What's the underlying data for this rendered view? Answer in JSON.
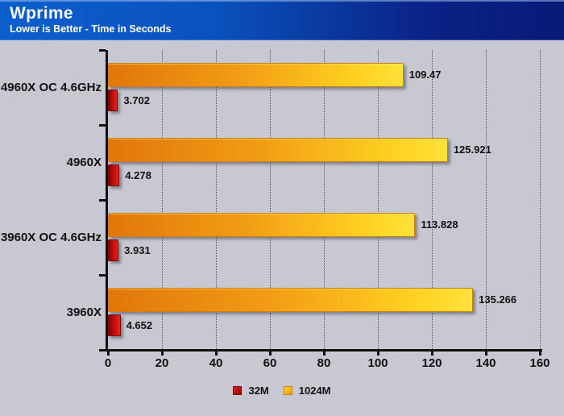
{
  "header": {
    "title": "Wprime",
    "subtitle": "Lower is Better - Time in Seconds"
  },
  "chart_data": {
    "type": "bar",
    "orientation": "horizontal",
    "title": "Wprime",
    "subtitle": "Lower is Better - Time in Seconds",
    "categories": [
      "4960X OC 4.6GHz",
      "4960X",
      "3960X OC 4.6GHz",
      "3960X"
    ],
    "series": [
      {
        "name": "32M",
        "color": "#c41010",
        "values": [
          3.702,
          4.278,
          3.931,
          4.652
        ]
      },
      {
        "name": "1024M",
        "color": "#f7a313",
        "values": [
          109.47,
          125.921,
          113.828,
          135.266
        ]
      }
    ],
    "xlabel": "",
    "ylabel": "",
    "xlim": [
      0,
      160
    ],
    "xticks": [
      0,
      20,
      40,
      60,
      80,
      100,
      120,
      140,
      160
    ],
    "grid": "vertical dotted gridlines at each x tick",
    "legend_position": "bottom-center"
  },
  "colors": {
    "header_gradient_left": "#0c5ecd",
    "header_gradient_right": "#091a78",
    "background": "#c7c8d1",
    "bar_32m_dark": "#880404",
    "bar_32m_light": "#e6251a",
    "bar_1024m_dark": "#e1760b",
    "bar_1024m_light": "#ffe23a",
    "axis": "#101010",
    "gridline": "#55555e",
    "text": "#111111"
  }
}
